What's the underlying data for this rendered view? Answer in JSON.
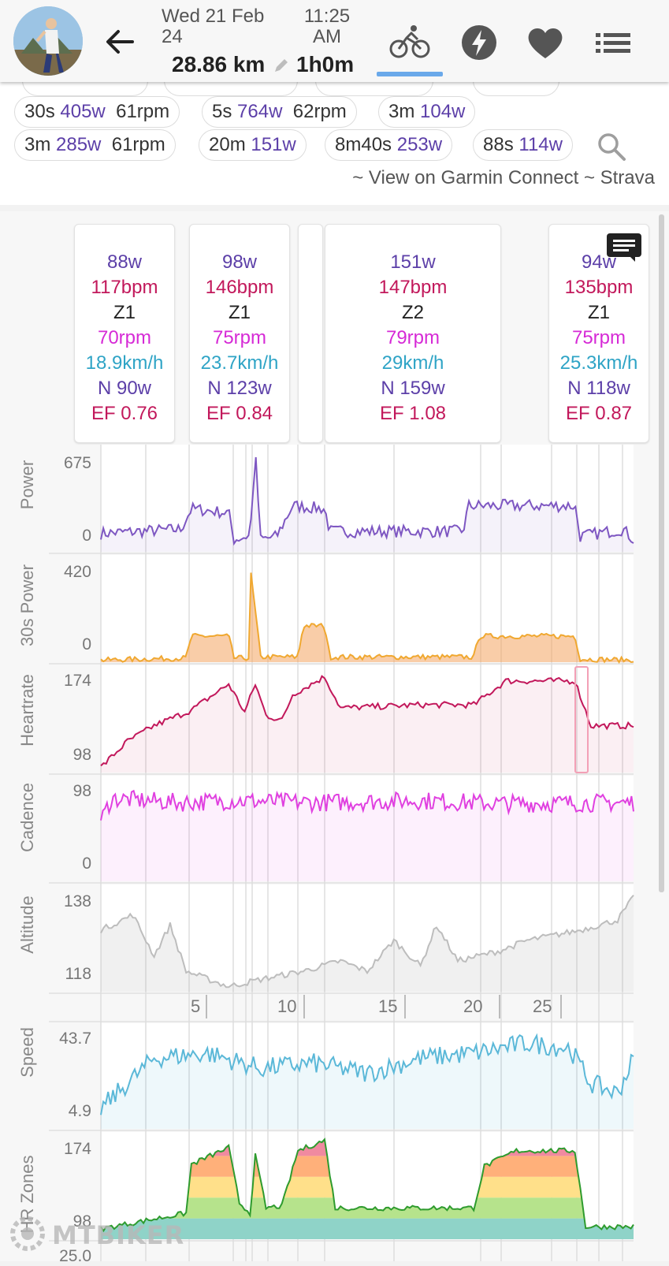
{
  "header": {
    "date": "Wed 21 Feb 24",
    "time": "11:25 AM",
    "distance": "28.86 km",
    "duration": "1h0m",
    "icons": [
      "back-arrow-icon",
      "bike-icon",
      "lightning-icon",
      "heart-icon",
      "list-icon"
    ],
    "accent_color": "#6aa9ea"
  },
  "intervals": {
    "chips": [
      {
        "dur": "30s",
        "power": "405w",
        "rpm": "61rpm"
      },
      {
        "dur": "5s",
        "power": "764w",
        "rpm": "62rpm"
      },
      {
        "dur": "3m",
        "power": "104w",
        "rpm": ""
      },
      {
        "dur": "3m",
        "power": "285w",
        "rpm": "61rpm"
      },
      {
        "dur": "20m",
        "power": "151w",
        "rpm": ""
      },
      {
        "dur": "8m40s",
        "power": "253w",
        "rpm": ""
      },
      {
        "dur": "88s",
        "power": "114w",
        "rpm": ""
      }
    ],
    "links": "~ View on Garmin Connect ~ Strava"
  },
  "laps": [
    {
      "power": "88w",
      "hr": "117bpm",
      "zone": "Z1",
      "cadence": "70rpm",
      "speed": "18.9km/h",
      "np": "N 90w",
      "ef": "EF 0.76"
    },
    {
      "power": "98w",
      "hr": "146bpm",
      "zone": "Z1",
      "cadence": "75rpm",
      "speed": "23.7km/h",
      "np": "N 123w",
      "ef": "EF 0.84"
    },
    {
      "power": "151w",
      "hr": "147bpm",
      "zone": "Z2",
      "cadence": "79rpm",
      "speed": "29km/h",
      "np": "N 159w",
      "ef": "EF 1.08"
    },
    {
      "power": "94w",
      "hr": "135bpm",
      "zone": "Z1",
      "cadence": "75rpm",
      "speed": "25.3km/h",
      "np": "N 118w",
      "ef": "EF 0.87"
    }
  ],
  "charts": {
    "power": {
      "label": "Power",
      "max": "675",
      "min": "0",
      "color": "#7e57c2"
    },
    "power30": {
      "label": "30s Power",
      "max": "420",
      "min": "0"
    },
    "heartrate": {
      "label": "Heartrate",
      "max": "174",
      "min": "98",
      "color": "#c2185b"
    },
    "cadence": {
      "label": "Cadence",
      "max": "98",
      "min": "0",
      "color": "#e040e0"
    },
    "altitude": {
      "label": "Altitude",
      "max": "138",
      "min": "118",
      "color": "#bdbdbd"
    },
    "distance_ticks": [
      "5",
      "10",
      "15",
      "20",
      "25"
    ],
    "speed": {
      "label": "Speed",
      "max": "43.7",
      "min": "4.9",
      "color": "#5bb8d8"
    },
    "hrzones": {
      "label": "HR Zones",
      "max": "174",
      "min": "98"
    },
    "next_panel_max": "25.0"
  },
  "watermark": "MTBIKER"
}
